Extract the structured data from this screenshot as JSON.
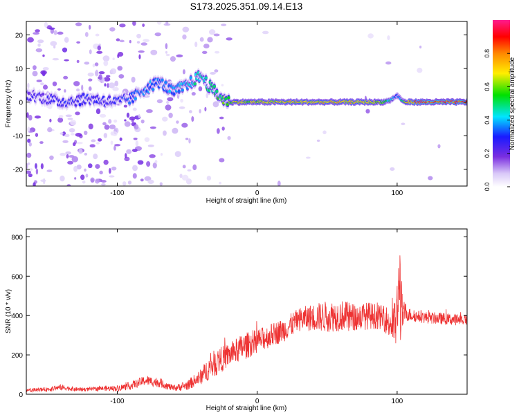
{
  "title": "S173.2025.351.09.14.E13",
  "chart_data": [
    {
      "type": "heatmap",
      "xlabel": "Height of straight line (km)",
      "ylabel": "Frequency (Hz)",
      "xlim": [
        -165,
        150
      ],
      "ylim": [
        -25,
        24
      ],
      "xticks": [
        -100,
        0,
        100
      ],
      "yticks": [
        -20,
        -10,
        0,
        10,
        20
      ],
      "grid": false,
      "colorbar": {
        "label": "Normalized spectral amplitude",
        "range": [
          0,
          1
        ],
        "ticks": [
          0.0,
          0.2,
          0.4,
          0.6,
          0.8
        ],
        "tick_labels": [
          "0.0",
          "0.2",
          "0.4",
          "0.6",
          "0.8"
        ],
        "colors": [
          "#ffffff",
          "#cdb8f3",
          "#7a2ee0",
          "#1a1aff",
          "#00e5ff",
          "#00e000",
          "#ffee00",
          "#ff8800",
          "#ff0000",
          "#ff1a8c"
        ]
      },
      "ridge": {
        "description": "dominant frequency track",
        "x": [
          -160,
          -140,
          -120,
          -100,
          -90,
          -80,
          -70,
          -60,
          -50,
          -40,
          -35,
          -30,
          -25,
          -20,
          0,
          20,
          40,
          60,
          80,
          90,
          95,
          100,
          105,
          110,
          130,
          150
        ],
        "y": [
          2,
          0,
          1,
          0,
          1,
          4,
          6,
          3,
          5,
          8,
          5,
          3,
          1,
          0,
          0,
          0,
          0,
          0,
          0,
          0,
          0.5,
          2,
          0,
          0,
          0,
          0
        ],
        "amplitude": [
          0.3,
          0.35,
          0.35,
          0.35,
          0.4,
          0.45,
          0.4,
          0.45,
          0.5,
          0.55,
          0.6,
          0.6,
          0.65,
          0.7,
          0.7,
          0.75,
          0.75,
          0.75,
          0.75,
          0.6,
          0.5,
          0.3,
          0.6,
          0.9,
          0.95,
          0.95
        ]
      }
    },
    {
      "type": "line",
      "xlabel": "Height of straight line (km)",
      "ylabel": "SNR (10 * v/v)",
      "xlim": [
        -165,
        150
      ],
      "ylim": [
        0,
        840
      ],
      "xticks": [
        -100,
        0,
        100
      ],
      "yticks": [
        0,
        200,
        400,
        600,
        800
      ],
      "grid": false,
      "series": [
        {
          "color": "#ee3333",
          "envelope_x": [
            -165,
            -150,
            -140,
            -130,
            -120,
            -110,
            -100,
            -90,
            -80,
            -70,
            -60,
            -50,
            -40,
            -35,
            -30,
            -20,
            -10,
            0,
            10,
            20,
            30,
            40,
            50,
            60,
            70,
            80,
            90,
            95,
            98,
            100,
            102,
            103,
            104,
            106,
            110,
            120,
            130,
            140,
            150
          ],
          "envelope_y": [
            20,
            25,
            35,
            25,
            25,
            30,
            30,
            45,
            70,
            60,
            30,
            45,
            90,
            130,
            160,
            200,
            240,
            270,
            300,
            330,
            380,
            390,
            395,
            400,
            390,
            400,
            390,
            360,
            350,
            400,
            560,
            420,
            390,
            420,
            400,
            390,
            385,
            380,
            380
          ],
          "noise": [
            10,
            10,
            15,
            10,
            10,
            12,
            15,
            20,
            25,
            25,
            15,
            25,
            40,
            60,
            70,
            60,
            70,
            60,
            60,
            60,
            60,
            70,
            80,
            80,
            70,
            70,
            60,
            90,
            120,
            180,
            280,
            200,
            60,
            50,
            30,
            30,
            30,
            30,
            30
          ]
        }
      ]
    }
  ]
}
